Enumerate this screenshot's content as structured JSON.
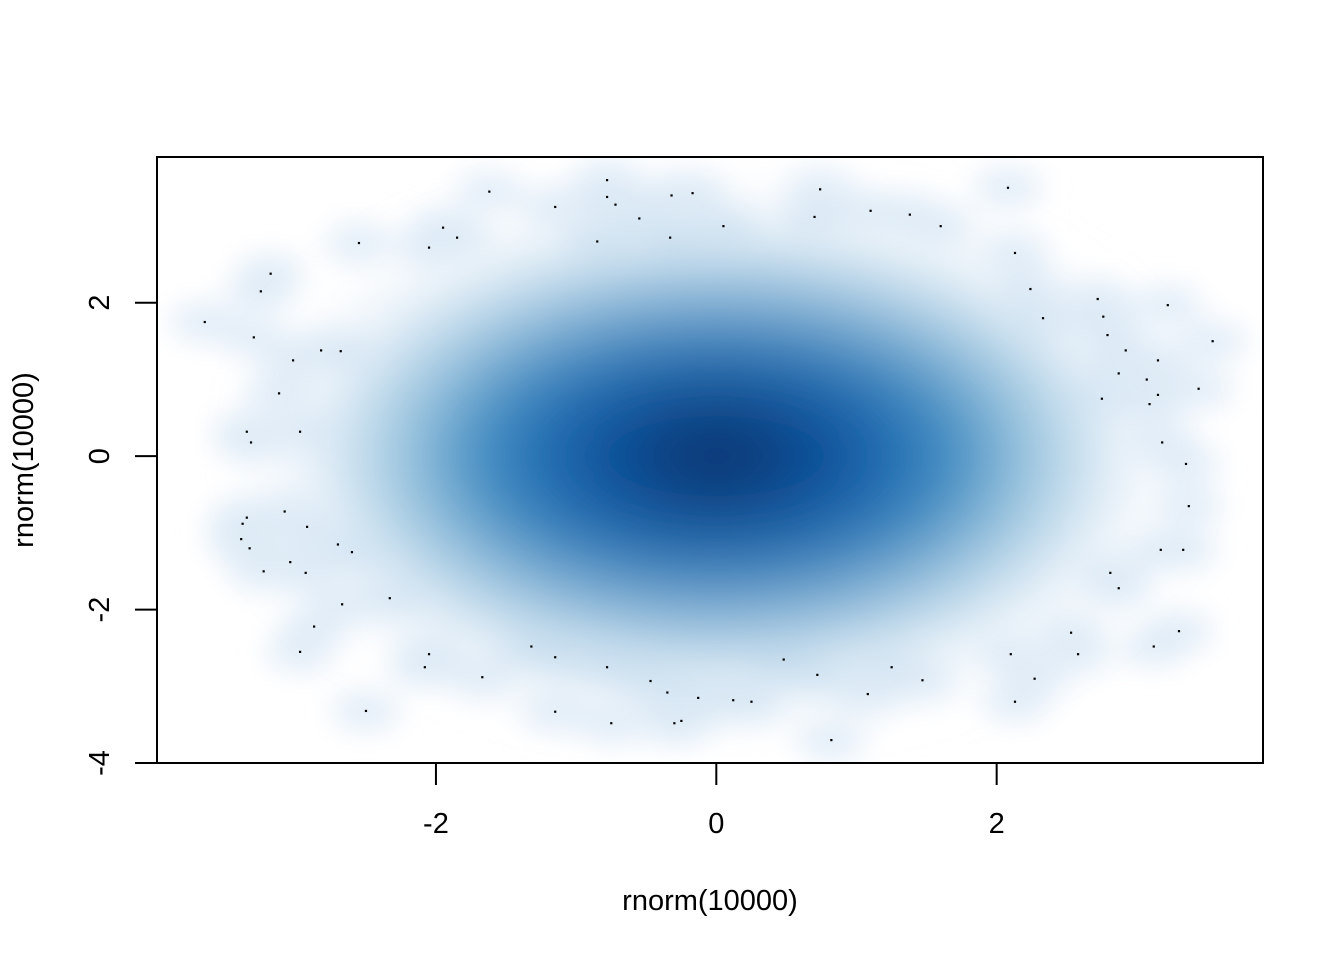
{
  "chart_data": {
    "type": "scatter",
    "title": "",
    "xlabel": "rnorm(10000)",
    "ylabel": "rnorm(10000)",
    "xlim": [
      -3.99,
      3.9
    ],
    "ylim": [
      -4.0,
      3.9
    ],
    "x_ticks": [
      -2,
      0,
      2
    ],
    "x_tick_labels": [
      "-2",
      "0",
      "2"
    ],
    "y_ticks": [
      -4,
      -2,
      0,
      2
    ],
    "y_tick_labels": [
      "-4",
      "-2",
      "0",
      "2"
    ],
    "grid": false,
    "legend": "none",
    "render": "smoothScatter",
    "density_colors": [
      "#f7fbff",
      "#deebf7",
      "#9ecae1",
      "#4292c6",
      "#2171b5",
      "#08519c",
      "#08306b"
    ],
    "outlier_points": [
      {
        "x": -3.65,
        "y": 1.75
      },
      {
        "x": -3.3,
        "y": 1.55
      },
      {
        "x": -3.25,
        "y": 2.15
      },
      {
        "x": -3.18,
        "y": 2.38
      },
      {
        "x": -3.02,
        "y": 1.25
      },
      {
        "x": -3.12,
        "y": 0.82
      },
      {
        "x": -3.35,
        "y": 0.32
      },
      {
        "x": -3.32,
        "y": 0.18
      },
      {
        "x": -2.97,
        "y": 0.32
      },
      {
        "x": -2.82,
        "y": 1.38
      },
      {
        "x": -2.68,
        "y": 1.37
      },
      {
        "x": -2.55,
        "y": 2.78
      },
      {
        "x": -2.05,
        "y": 2.72
      },
      {
        "x": -1.95,
        "y": 2.98
      },
      {
        "x": -1.85,
        "y": 2.85
      },
      {
        "x": -1.62,
        "y": 3.45
      },
      {
        "x": -1.15,
        "y": 3.25
      },
      {
        "x": -0.85,
        "y": 2.8
      },
      {
        "x": -0.78,
        "y": 3.6
      },
      {
        "x": -0.78,
        "y": 3.38
      },
      {
        "x": -0.72,
        "y": 3.28
      },
      {
        "x": -0.55,
        "y": 3.1
      },
      {
        "x": -0.32,
        "y": 3.4
      },
      {
        "x": -0.33,
        "y": 2.85
      },
      {
        "x": -0.17,
        "y": 3.43
      },
      {
        "x": 0.05,
        "y": 3.0
      },
      {
        "x": 0.7,
        "y": 3.12
      },
      {
        "x": 0.74,
        "y": 3.48
      },
      {
        "x": 1.1,
        "y": 3.2
      },
      {
        "x": 1.38,
        "y": 3.15
      },
      {
        "x": 1.6,
        "y": 3.0
      },
      {
        "x": 2.08,
        "y": 3.5
      },
      {
        "x": 2.13,
        "y": 2.65
      },
      {
        "x": 2.24,
        "y": 2.18
      },
      {
        "x": 2.33,
        "y": 1.8
      },
      {
        "x": 2.72,
        "y": 2.05
      },
      {
        "x": 2.76,
        "y": 1.82
      },
      {
        "x": 2.79,
        "y": 1.58
      },
      {
        "x": 2.87,
        "y": 1.08
      },
      {
        "x": 2.92,
        "y": 1.38
      },
      {
        "x": 2.75,
        "y": 0.75
      },
      {
        "x": 3.07,
        "y": 1.0
      },
      {
        "x": 3.09,
        "y": 0.68
      },
      {
        "x": 3.15,
        "y": 0.8
      },
      {
        "x": 3.15,
        "y": 1.25
      },
      {
        "x": 3.22,
        "y": 1.97
      },
      {
        "x": 3.44,
        "y": 0.88
      },
      {
        "x": 3.54,
        "y": 1.5
      },
      {
        "x": 3.18,
        "y": 0.18
      },
      {
        "x": 3.35,
        "y": -0.1
      },
      {
        "x": 3.37,
        "y": -0.65
      },
      {
        "x": 3.17,
        "y": -1.22
      },
      {
        "x": 3.33,
        "y": -1.22
      },
      {
        "x": 2.81,
        "y": -1.52
      },
      {
        "x": 2.87,
        "y": -1.72
      },
      {
        "x": 2.53,
        "y": -2.3
      },
      {
        "x": 2.58,
        "y": -2.58
      },
      {
        "x": 2.27,
        "y": -2.9
      },
      {
        "x": 2.13,
        "y": -3.2
      },
      {
        "x": 2.1,
        "y": -2.58
      },
      {
        "x": 3.12,
        "y": -2.48
      },
      {
        "x": 3.3,
        "y": -2.28
      },
      {
        "x": -3.35,
        "y": -0.8
      },
      {
        "x": -3.38,
        "y": -0.88
      },
      {
        "x": -3.39,
        "y": -1.08
      },
      {
        "x": -3.33,
        "y": -1.2
      },
      {
        "x": -3.23,
        "y": -1.5
      },
      {
        "x": -3.08,
        "y": -0.72
      },
      {
        "x": -3.04,
        "y": -1.38
      },
      {
        "x": -2.93,
        "y": -1.52
      },
      {
        "x": -2.92,
        "y": -0.92
      },
      {
        "x": -2.7,
        "y": -1.15
      },
      {
        "x": -2.6,
        "y": -1.25
      },
      {
        "x": -2.67,
        "y": -1.93
      },
      {
        "x": -2.33,
        "y": -1.85
      },
      {
        "x": -2.87,
        "y": -2.22
      },
      {
        "x": -2.97,
        "y": -2.55
      },
      {
        "x": -2.5,
        "y": -3.32
      },
      {
        "x": -2.05,
        "y": -2.58
      },
      {
        "x": -2.08,
        "y": -2.75
      },
      {
        "x": -1.67,
        "y": -2.88
      },
      {
        "x": -1.32,
        "y": -2.48
      },
      {
        "x": -1.15,
        "y": -2.62
      },
      {
        "x": -1.15,
        "y": -3.33
      },
      {
        "x": -0.78,
        "y": -2.75
      },
      {
        "x": -0.75,
        "y": -3.48
      },
      {
        "x": -0.47,
        "y": -2.93
      },
      {
        "x": -0.35,
        "y": -3.08
      },
      {
        "x": -0.3,
        "y": -3.48
      },
      {
        "x": -0.25,
        "y": -3.45
      },
      {
        "x": -0.13,
        "y": -3.15
      },
      {
        "x": 0.12,
        "y": -3.18
      },
      {
        "x": 0.25,
        "y": -3.2
      },
      {
        "x": 0.48,
        "y": -2.65
      },
      {
        "x": 0.72,
        "y": -2.85
      },
      {
        "x": 0.82,
        "y": -3.7
      },
      {
        "x": 1.08,
        "y": -3.1
      },
      {
        "x": 1.25,
        "y": -2.75
      },
      {
        "x": 1.47,
        "y": -2.92
      }
    ]
  }
}
